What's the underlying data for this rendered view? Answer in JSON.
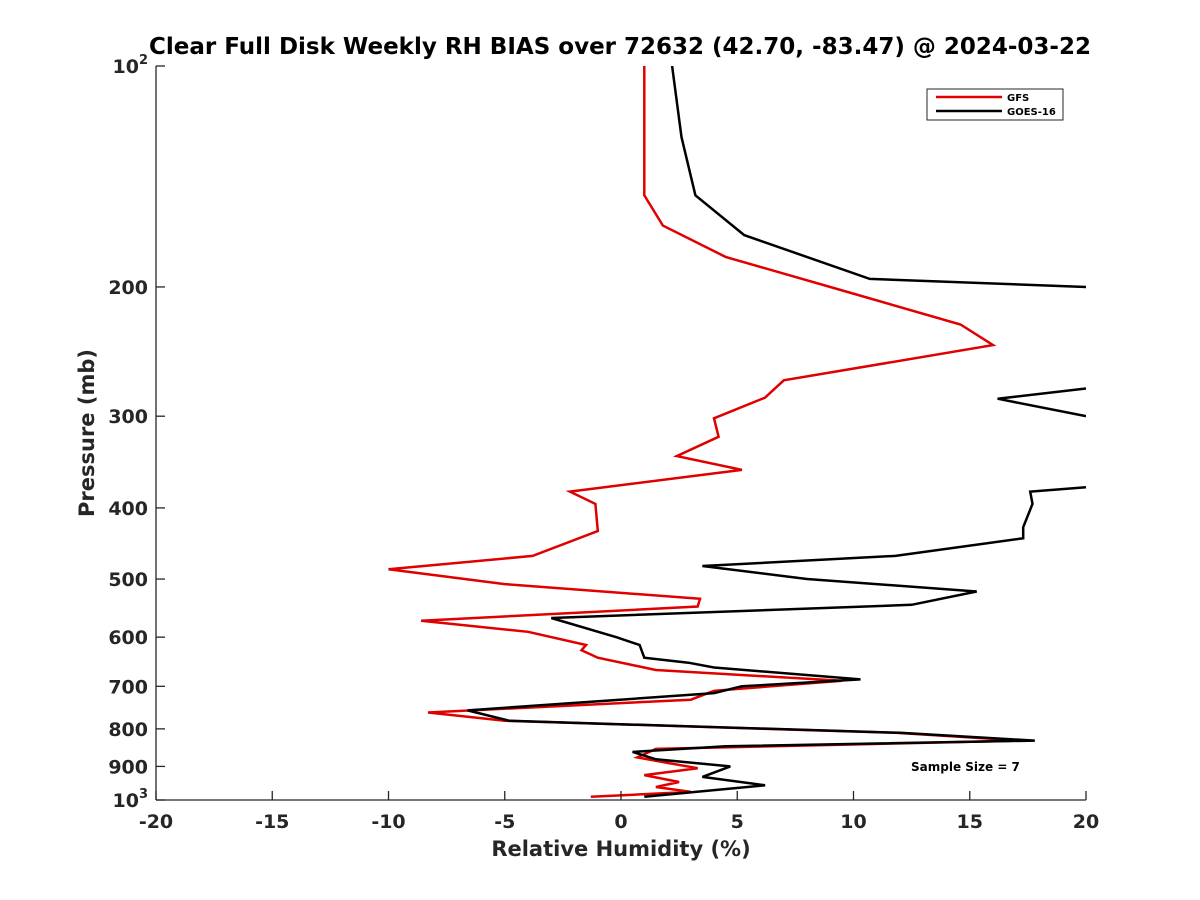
{
  "chart_data": {
    "type": "line",
    "title": "Clear Full Disk Weekly RH BIAS over 72632 (42.70, -83.47) @ 2024-03-22",
    "xlabel": "Relative Humidity (%)",
    "ylabel": "Pressure (mb)",
    "xlim": [
      -20,
      20
    ],
    "ylim": [
      100,
      1000
    ],
    "y_scale": "log",
    "y_reversed": true,
    "grid": false,
    "x_ticks": [
      "-20",
      "-15",
      "-10",
      "-5",
      "0",
      "5",
      "10",
      "15",
      "20"
    ],
    "y_ticks": [
      {
        "value": 100,
        "base": "10",
        "exp": "2"
      },
      {
        "value": 200,
        "label": "200"
      },
      {
        "value": 300,
        "label": "300"
      },
      {
        "value": 400,
        "label": "400"
      },
      {
        "value": 500,
        "label": "500"
      },
      {
        "value": 600,
        "label": "600"
      },
      {
        "value": 700,
        "label": "700"
      },
      {
        "value": 800,
        "label": "800"
      },
      {
        "value": 900,
        "label": "900"
      },
      {
        "value": 1000,
        "base": "10",
        "exp": "3"
      }
    ],
    "legend_position": "top-right",
    "annotation": "Sample Size = 7",
    "series": [
      {
        "name": "GFS",
        "color": "#e00000",
        "points": [
          [
            1.0,
            100
          ],
          [
            1.0,
            125
          ],
          [
            1.0,
            150
          ],
          [
            1.8,
            165
          ],
          [
            4.5,
            182
          ],
          [
            9.0,
            200
          ],
          [
            14.6,
            225
          ],
          [
            16.0,
            240
          ],
          [
            7.0,
            268
          ],
          [
            6.2,
            283
          ],
          [
            4.0,
            302
          ],
          [
            4.2,
            320
          ],
          [
            2.4,
            340
          ],
          [
            5.2,
            355
          ],
          [
            -2.2,
            380
          ],
          [
            -1.1,
            395
          ],
          [
            -1.0,
            430
          ],
          [
            -3.8,
            465
          ],
          [
            -10.0,
            485
          ],
          [
            -5.0,
            508
          ],
          [
            3.4,
            532
          ],
          [
            3.3,
            545
          ],
          [
            -8.6,
            570
          ],
          [
            -4.0,
            590
          ],
          [
            -1.5,
            615
          ],
          [
            -1.7,
            625
          ],
          [
            -1.0,
            640
          ],
          [
            1.5,
            665
          ],
          [
            9.5,
            688
          ],
          [
            4.0,
            710
          ],
          [
            3.0,
            730
          ],
          [
            -8.3,
            760
          ],
          [
            -5.0,
            780
          ],
          [
            11.8,
            810
          ],
          [
            17.2,
            830
          ],
          [
            1.5,
            852
          ],
          [
            0.7,
            875
          ],
          [
            2.0,
            890
          ],
          [
            3.3,
            905
          ],
          [
            1.0,
            925
          ],
          [
            2.5,
            945
          ],
          [
            1.5,
            960
          ],
          [
            3.0,
            975
          ],
          [
            -1.3,
            990
          ]
        ]
      },
      {
        "name": "GOES-16",
        "color": "#000000",
        "segments": [
          [
            [
              2.2,
              100
            ],
            [
              2.6,
              125
            ],
            [
              3.2,
              150
            ],
            [
              5.3,
              170
            ],
            [
              10.7,
              195
            ],
            [
              20.0,
              200
            ]
          ],
          [
            [
              20.0,
              275
            ],
            [
              16.2,
              284
            ],
            [
              20.0,
              300
            ]
          ],
          [
            [
              20.0,
              375
            ],
            [
              17.6,
              380
            ],
            [
              17.7,
              395
            ],
            [
              17.3,
              425
            ],
            [
              17.3,
              440
            ],
            [
              11.8,
              465
            ],
            [
              3.5,
              480
            ],
            [
              8.0,
              500
            ],
            [
              15.3,
              520
            ],
            [
              12.5,
              542
            ],
            [
              -3.0,
              565
            ],
            [
              -0.2,
              600
            ],
            [
              0.8,
              615
            ],
            [
              1.0,
              640
            ],
            [
              2.9,
              650
            ],
            [
              4.0,
              660
            ],
            [
              10.3,
              685
            ],
            [
              5.2,
              700
            ],
            [
              4.0,
              715
            ],
            [
              -6.6,
              755
            ],
            [
              -4.8,
              780
            ],
            [
              12.0,
              810
            ],
            [
              17.8,
              830
            ],
            [
              4.5,
              845
            ],
            [
              0.5,
              860
            ],
            [
              1.5,
              880
            ],
            [
              4.7,
              900
            ],
            [
              3.5,
              930
            ],
            [
              6.2,
              955
            ],
            [
              1.0,
              990
            ]
          ]
        ]
      }
    ]
  }
}
